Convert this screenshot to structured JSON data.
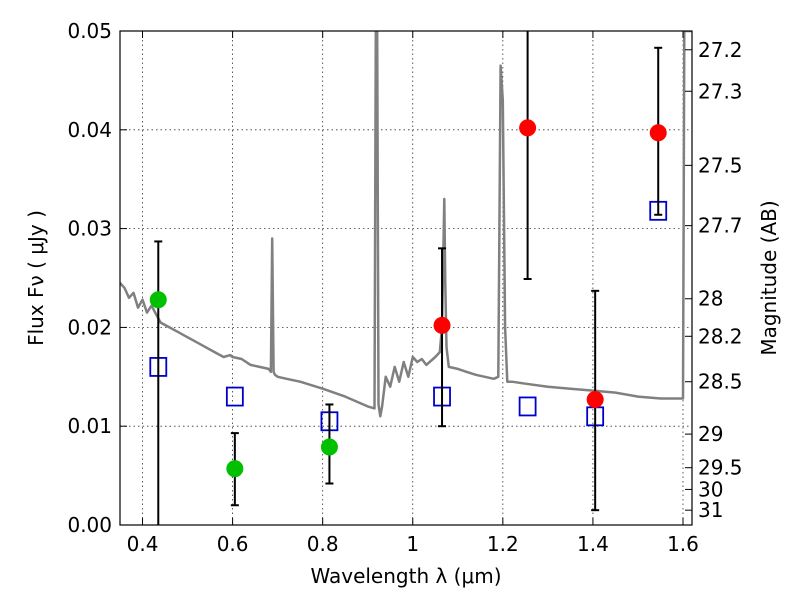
{
  "chart_data": {
    "type": "scatter",
    "xlabel": "Wavelength  λ (μm)",
    "ylabel": "Flux  Fν  ( μJy )",
    "ylabel_right": "Magnitude (AB)",
    "xlim": [
      0.35,
      1.62
    ],
    "ylim": [
      0.0,
      0.05
    ],
    "grid": true,
    "x_ticks": [
      0.4,
      0.6,
      0.8,
      1.0,
      1.2,
      1.4,
      1.6
    ],
    "x_tick_labels": [
      "0.4",
      "0.6",
      "0.8",
      "1",
      "1.2",
      "1.4",
      "1.6"
    ],
    "y_ticks": [
      0.0,
      0.01,
      0.02,
      0.03,
      0.04,
      0.05
    ],
    "y_tick_labels": [
      "0.00",
      "0.01",
      "0.02",
      "0.03",
      "0.04",
      "0.05"
    ],
    "right_ticks": [
      {
        "label": "27.2",
        "flux": 0.0481
      },
      {
        "label": "27.3",
        "flux": 0.0439
      },
      {
        "label": "27.5",
        "flux": 0.0364
      },
      {
        "label": "27.7",
        "flux": 0.0303
      },
      {
        "label": "28",
        "flux": 0.0229
      },
      {
        "label": "28.2",
        "flux": 0.0191
      },
      {
        "label": "28.5",
        "flux": 0.0145
      },
      {
        "label": "29",
        "flux": 0.0092
      },
      {
        "label": "29.5",
        "flux": 0.0058
      },
      {
        "label": "30",
        "flux": 0.0036
      },
      {
        "label": "31",
        "flux": 0.0015
      }
    ],
    "series": [
      {
        "role": "model-spectrum",
        "kind": "line",
        "color": "#808080",
        "x": [
          0.35,
          0.36,
          0.37,
          0.38,
          0.39,
          0.4,
          0.41,
          0.42,
          0.44,
          0.46,
          0.48,
          0.5,
          0.52,
          0.54,
          0.56,
          0.58,
          0.595,
          0.6,
          0.62,
          0.64,
          0.66,
          0.68,
          0.685,
          0.688,
          0.691,
          0.694,
          0.7,
          0.72,
          0.75,
          0.8,
          0.85,
          0.9,
          0.915,
          0.918,
          0.921,
          0.924,
          0.928,
          0.932,
          0.94,
          0.95,
          0.96,
          0.97,
          0.98,
          0.99,
          1.0,
          1.01,
          1.02,
          1.03,
          1.05,
          1.06,
          1.065,
          1.07,
          1.072,
          1.075,
          1.08,
          1.1,
          1.12,
          1.14,
          1.16,
          1.18,
          1.19,
          1.195,
          1.2,
          1.205,
          1.21,
          1.22,
          1.25,
          1.3,
          1.35,
          1.4,
          1.45,
          1.5,
          1.55,
          1.6,
          1.603,
          1.606,
          1.61,
          1.615,
          1.62
        ],
        "y": [
          0.0245,
          0.024,
          0.023,
          0.0235,
          0.022,
          0.0228,
          0.0215,
          0.0222,
          0.0205,
          0.02,
          0.0195,
          0.019,
          0.0185,
          0.018,
          0.0175,
          0.017,
          0.0172,
          0.017,
          0.0168,
          0.0162,
          0.016,
          0.0158,
          0.0155,
          0.029,
          0.0155,
          0.0152,
          0.015,
          0.0148,
          0.0145,
          0.0138,
          0.013,
          0.012,
          0.0118,
          0.05,
          0.05,
          0.0122,
          0.011,
          0.012,
          0.015,
          0.014,
          0.016,
          0.0145,
          0.0165,
          0.015,
          0.017,
          0.0165,
          0.0168,
          0.0162,
          0.017,
          0.0175,
          0.02,
          0.033,
          0.025,
          0.018,
          0.016,
          0.0158,
          0.0155,
          0.0152,
          0.015,
          0.0148,
          0.015,
          0.0465,
          0.043,
          0.02,
          0.0145,
          0.0145,
          0.0143,
          0.014,
          0.0138,
          0.0136,
          0.0134,
          0.013,
          0.0128,
          0.0128,
          0.05,
          0.05,
          0.05,
          0.05,
          0.05
        ]
      },
      {
        "role": "model-photometry",
        "kind": "marker",
        "marker": "square-open",
        "color": "#0000cc",
        "x": [
          0.435,
          0.605,
          0.815,
          1.065,
          1.255,
          1.405,
          1.545
        ],
        "y": [
          0.016,
          0.013,
          0.0105,
          0.013,
          0.012,
          0.011,
          0.0318
        ]
      },
      {
        "role": "detections-optical",
        "kind": "marker",
        "marker": "circle-filled",
        "color": "#00c000",
        "x": [
          0.435,
          0.605,
          0.815
        ],
        "y": [
          0.0228,
          0.0057,
          0.0079
        ],
        "yerr_low": [
          0.0228,
          0.0037,
          0.0037
        ],
        "yerr_high": [
          0.0059,
          0.0036,
          0.0043
        ]
      },
      {
        "role": "detections-infrared",
        "kind": "marker",
        "marker": "circle-filled",
        "color": "#ff0000",
        "x": [
          1.065,
          1.255,
          1.405,
          1.545
        ],
        "y": [
          0.0202,
          0.0402,
          0.0127,
          0.0397
        ],
        "yerr_low": [
          0.0102,
          0.0153,
          0.0112,
          0.0083
        ],
        "yerr_high": [
          0.0078,
          0.0098,
          0.011,
          0.0086
        ]
      }
    ]
  }
}
